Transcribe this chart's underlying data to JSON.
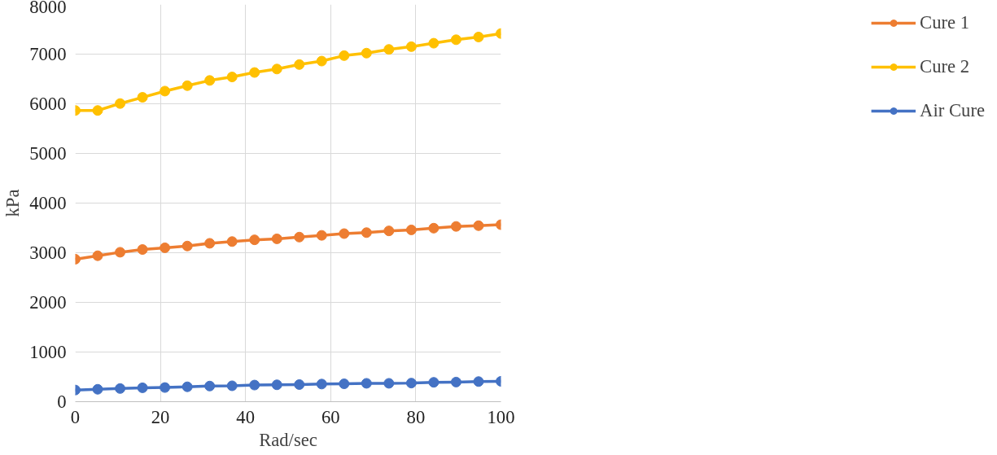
{
  "chart_data": {
    "type": "line",
    "xlabel": "Rad/sec",
    "ylabel": "kPa",
    "x": [
      0,
      5.26,
      10.53,
      15.79,
      21.05,
      26.32,
      31.58,
      36.84,
      42.11,
      47.37,
      52.63,
      57.89,
      63.16,
      68.42,
      73.68,
      78.95,
      84.21,
      89.47,
      94.74,
      100
    ],
    "series": [
      {
        "name": "Cure 1",
        "color": "#ed7d31",
        "values": [
          2870,
          2940,
          3010,
          3065,
          3100,
          3135,
          3190,
          3225,
          3260,
          3280,
          3315,
          3350,
          3385,
          3405,
          3440,
          3460,
          3495,
          3530,
          3545,
          3565
        ]
      },
      {
        "name": "Cure 2",
        "color": "#ffc000",
        "values": [
          5865,
          5865,
          6005,
          6130,
          6255,
          6365,
          6470,
          6540,
          6630,
          6700,
          6790,
          6860,
          6970,
          7020,
          7095,
          7150,
          7220,
          7290,
          7345,
          7415
        ]
      },
      {
        "name": "Air Cure",
        "color": "#4472c4",
        "values": [
          235,
          250,
          265,
          280,
          285,
          300,
          315,
          320,
          335,
          340,
          345,
          355,
          360,
          370,
          370,
          375,
          390,
          395,
          405,
          410
        ]
      }
    ],
    "xlim": [
      0,
      100
    ],
    "xticks": [
      0,
      20,
      40,
      60,
      80,
      100
    ],
    "ylim": [
      0,
      8000
    ],
    "yticks": [
      0,
      1000,
      2000,
      3000,
      4000,
      5000,
      6000,
      7000,
      8000
    ],
    "grid": true,
    "legend": "right",
    "marker": "circle",
    "line_style": "solid"
  }
}
